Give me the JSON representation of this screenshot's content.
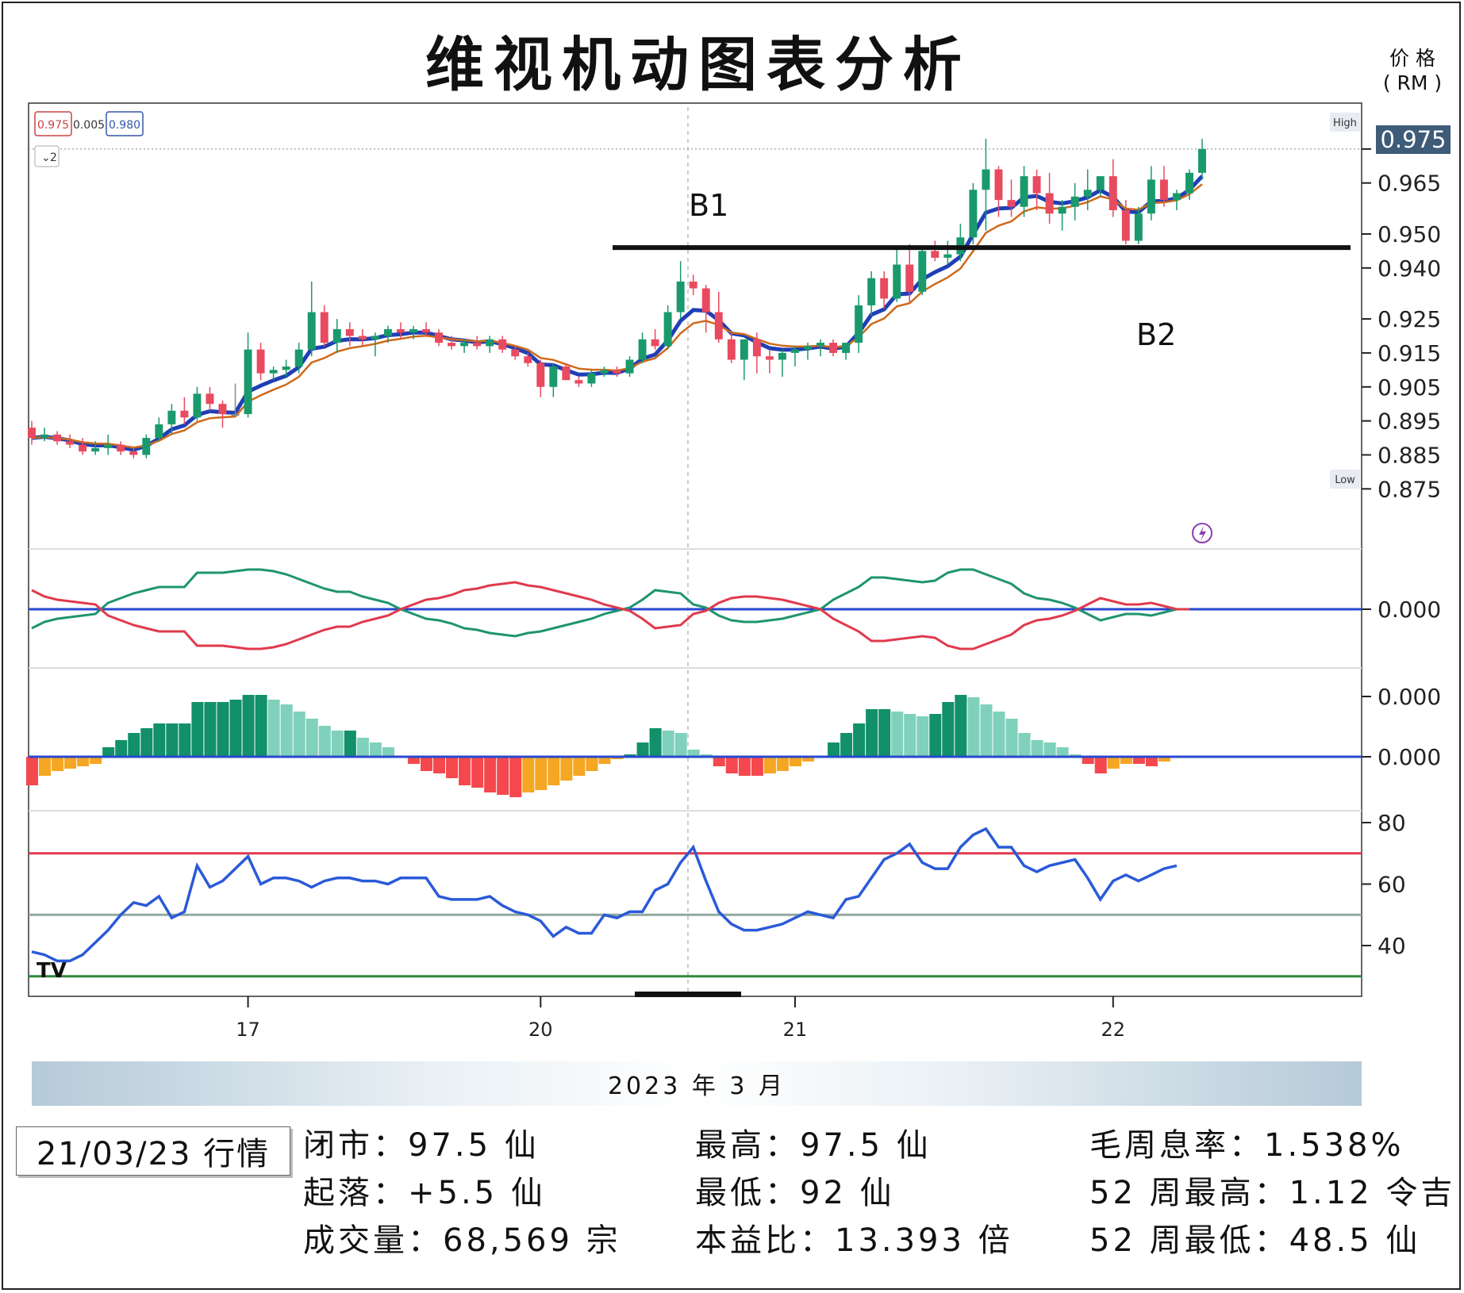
{
  "title": "维视机动图表分析",
  "unit_label": [
    "价 格",
    "( RM )"
  ],
  "ohlc_top": {
    "open": "0.975",
    "change": "0.005",
    "high": "0.980"
  },
  "interval_tag": "2",
  "last_price_tag": "0.975",
  "high_tag": "High",
  "low_tag": "Low",
  "annotations": {
    "b1": "B1",
    "b2": "B2"
  },
  "date_band": "2023 年 3 月",
  "date_box": "21/03/23 行情",
  "watermark": "TV",
  "stats": [
    [
      "闭市：97.5 仙",
      "最高：97.5 仙",
      "毛周息率：1.538%"
    ],
    [
      "起落：+5.5 仙",
      "最低：92 仙",
      "52 周最高：1.12 令吉"
    ],
    [
      "成交量：68,569 宗",
      "本益比：13.393 倍",
      "52 周最低：48.5 仙"
    ]
  ],
  "chart_data": {
    "type": "candlestick",
    "price_axis": {
      "ticks": [
        "0.975",
        "0.965",
        "0.950",
        "0.940",
        "0.925",
        "0.915",
        "0.905",
        "0.895",
        "0.885",
        "0.875"
      ],
      "range": [
        0.862,
        0.985
      ]
    },
    "x_ticks": [
      "17",
      "20",
      "21",
      "22"
    ],
    "x_tick_bars": [
      17,
      40,
      60,
      85
    ],
    "resistance_level": 0.946,
    "candles": [
      [
        0.893,
        0.895,
        0.888,
        0.89
      ],
      [
        0.89,
        0.893,
        0.889,
        0.891
      ],
      [
        0.891,
        0.892,
        0.888,
        0.889
      ],
      [
        0.889,
        0.891,
        0.887,
        0.888
      ],
      [
        0.888,
        0.89,
        0.885,
        0.886
      ],
      [
        0.886,
        0.889,
        0.885,
        0.887
      ],
      [
        0.887,
        0.891,
        0.885,
        0.888
      ],
      [
        0.888,
        0.889,
        0.885,
        0.886
      ],
      [
        0.886,
        0.887,
        0.884,
        0.885
      ],
      [
        0.885,
        0.891,
        0.884,
        0.89
      ],
      [
        0.89,
        0.896,
        0.889,
        0.894
      ],
      [
        0.894,
        0.9,
        0.891,
        0.898
      ],
      [
        0.898,
        0.902,
        0.894,
        0.896
      ],
      [
        0.896,
        0.905,
        0.895,
        0.903
      ],
      [
        0.903,
        0.905,
        0.898,
        0.9
      ],
      [
        0.9,
        0.901,
        0.893,
        0.897
      ],
      [
        0.897,
        0.906,
        0.896,
        0.897
      ],
      [
        0.897,
        0.921,
        0.896,
        0.916
      ],
      [
        0.916,
        0.918,
        0.907,
        0.909
      ],
      [
        0.909,
        0.911,
        0.907,
        0.91
      ],
      [
        0.91,
        0.913,
        0.908,
        0.911
      ],
      [
        0.911,
        0.918,
        0.909,
        0.916
      ],
      [
        0.916,
        0.936,
        0.914,
        0.927
      ],
      [
        0.927,
        0.929,
        0.917,
        0.918
      ],
      [
        0.918,
        0.925,
        0.915,
        0.922
      ],
      [
        0.922,
        0.924,
        0.917,
        0.92
      ],
      [
        0.92,
        0.922,
        0.917,
        0.919
      ],
      [
        0.919,
        0.921,
        0.914,
        0.92
      ],
      [
        0.92,
        0.923,
        0.918,
        0.922
      ],
      [
        0.922,
        0.924,
        0.919,
        0.921
      ],
      [
        0.921,
        0.923,
        0.919,
        0.922
      ],
      [
        0.922,
        0.924,
        0.92,
        0.921
      ],
      [
        0.921,
        0.922,
        0.917,
        0.918
      ],
      [
        0.918,
        0.92,
        0.916,
        0.917
      ],
      [
        0.917,
        0.919,
        0.915,
        0.918
      ],
      [
        0.918,
        0.92,
        0.916,
        0.917
      ],
      [
        0.917,
        0.92,
        0.915,
        0.919
      ],
      [
        0.919,
        0.92,
        0.915,
        0.916
      ],
      [
        0.916,
        0.917,
        0.913,
        0.914
      ],
      [
        0.914,
        0.915,
        0.911,
        0.912
      ],
      [
        0.912,
        0.913,
        0.902,
        0.905
      ],
      [
        0.905,
        0.912,
        0.902,
        0.911
      ],
      [
        0.911,
        0.912,
        0.907,
        0.907
      ],
      [
        0.907,
        0.908,
        0.905,
        0.906
      ],
      [
        0.906,
        0.91,
        0.905,
        0.909
      ],
      [
        0.909,
        0.911,
        0.908,
        0.91
      ],
      [
        0.91,
        0.911,
        0.908,
        0.909
      ],
      [
        0.909,
        0.914,
        0.908,
        0.913
      ],
      [
        0.913,
        0.921,
        0.912,
        0.919
      ],
      [
        0.919,
        0.922,
        0.916,
        0.917
      ],
      [
        0.917,
        0.929,
        0.916,
        0.927
      ],
      [
        0.927,
        0.942,
        0.925,
        0.936
      ],
      [
        0.936,
        0.938,
        0.932,
        0.934
      ],
      [
        0.934,
        0.935,
        0.921,
        0.927
      ],
      [
        0.927,
        0.933,
        0.918,
        0.919
      ],
      [
        0.919,
        0.921,
        0.912,
        0.913
      ],
      [
        0.913,
        0.919,
        0.907,
        0.919
      ],
      [
        0.919,
        0.921,
        0.909,
        0.914
      ],
      [
        0.914,
        0.916,
        0.909,
        0.913
      ],
      [
        0.913,
        0.916,
        0.908,
        0.915
      ],
      [
        0.915,
        0.917,
        0.911,
        0.916
      ],
      [
        0.916,
        0.918,
        0.913,
        0.917
      ],
      [
        0.917,
        0.919,
        0.914,
        0.918
      ],
      [
        0.918,
        0.919,
        0.914,
        0.915
      ],
      [
        0.915,
        0.918,
        0.913,
        0.918
      ],
      [
        0.918,
        0.932,
        0.915,
        0.929
      ],
      [
        0.929,
        0.939,
        0.926,
        0.937
      ],
      [
        0.937,
        0.939,
        0.928,
        0.931
      ],
      [
        0.931,
        0.946,
        0.93,
        0.941
      ],
      [
        0.941,
        0.947,
        0.93,
        0.933
      ],
      [
        0.933,
        0.946,
        0.932,
        0.945
      ],
      [
        0.945,
        0.948,
        0.942,
        0.943
      ],
      [
        0.943,
        0.948,
        0.941,
        0.944
      ],
      [
        0.944,
        0.953,
        0.942,
        0.949
      ],
      [
        0.949,
        0.965,
        0.947,
        0.963
      ],
      [
        0.963,
        0.978,
        0.951,
        0.969
      ],
      [
        0.969,
        0.97,
        0.955,
        0.96
      ],
      [
        0.96,
        0.966,
        0.955,
        0.958
      ],
      [
        0.958,
        0.97,
        0.955,
        0.967
      ],
      [
        0.967,
        0.969,
        0.957,
        0.962
      ],
      [
        0.962,
        0.968,
        0.953,
        0.956
      ],
      [
        0.956,
        0.96,
        0.951,
        0.958
      ],
      [
        0.958,
        0.965,
        0.954,
        0.961
      ],
      [
        0.961,
        0.969,
        0.957,
        0.963
      ],
      [
        0.963,
        0.967,
        0.961,
        0.967
      ],
      [
        0.967,
        0.972,
        0.955,
        0.957
      ],
      [
        0.957,
        0.96,
        0.947,
        0.948
      ],
      [
        0.948,
        0.958,
        0.947,
        0.956
      ],
      [
        0.956,
        0.97,
        0.954,
        0.966
      ],
      [
        0.966,
        0.97,
        0.958,
        0.96
      ],
      [
        0.96,
        0.963,
        0.957,
        0.962
      ],
      [
        0.962,
        0.969,
        0.96,
        0.968
      ],
      [
        0.968,
        0.978,
        0.966,
        0.975
      ]
    ],
    "oscillator_tick": "0.000",
    "histogram_ticks": [
      "0.000",
      "0.000"
    ],
    "histogram": [
      -1.2,
      -0.8,
      -0.6,
      -0.5,
      -0.4,
      -0.3,
      0.4,
      0.7,
      1.0,
      1.2,
      1.4,
      1.4,
      1.4,
      2.3,
      2.3,
      2.3,
      2.4,
      2.6,
      2.6,
      2.4,
      2.2,
      1.9,
      1.6,
      1.3,
      1.1,
      1.1,
      0.8,
      0.6,
      0.4,
      0.0,
      -0.3,
      -0.6,
      -0.7,
      -0.9,
      -1.2,
      -1.3,
      -1.5,
      -1.6,
      -1.7,
      -1.5,
      -1.4,
      -1.2,
      -1.0,
      -0.8,
      -0.6,
      -0.3,
      -0.1,
      0.1,
      0.6,
      1.2,
      1.1,
      1.0,
      0.3,
      0.1,
      -0.4,
      -0.7,
      -0.8,
      -0.8,
      -0.7,
      -0.6,
      -0.4,
      -0.2,
      0.0,
      0.6,
      1.0,
      1.4,
      2.0,
      2.0,
      1.9,
      1.8,
      1.7,
      1.8,
      2.3,
      2.6,
      2.5,
      2.2,
      1.9,
      1.6,
      1.0,
      0.7,
      0.6,
      0.4,
      0.1,
      -0.3,
      -0.7,
      -0.5,
      -0.3,
      -0.3,
      -0.4,
      -0.2,
      0.0,
      0.0
    ],
    "rsi_ticks": [
      "80",
      "60",
      "40"
    ],
    "rsi_levels": [
      70,
      50,
      30
    ],
    "rsi": [
      38,
      37,
      35,
      35,
      37,
      41,
      45,
      50,
      54,
      53,
      56,
      49,
      51,
      66,
      59,
      61,
      65,
      69,
      60,
      62,
      62,
      61,
      59,
      61,
      62,
      62,
      61,
      61,
      60,
      62,
      62,
      62,
      56,
      55,
      55,
      55,
      56,
      53,
      51,
      50,
      48,
      43,
      46,
      44,
      44,
      50,
      49,
      51,
      51,
      58,
      60,
      67,
      72,
      61,
      51,
      47,
      45,
      45,
      46,
      47,
      49,
      51,
      50,
      49,
      55,
      56,
      62,
      68,
      70,
      73,
      67,
      65,
      65,
      72,
      76,
      78,
      72,
      72,
      66,
      64,
      66,
      67,
      68,
      62,
      55,
      61,
      63,
      61,
      63,
      65,
      66
    ]
  }
}
